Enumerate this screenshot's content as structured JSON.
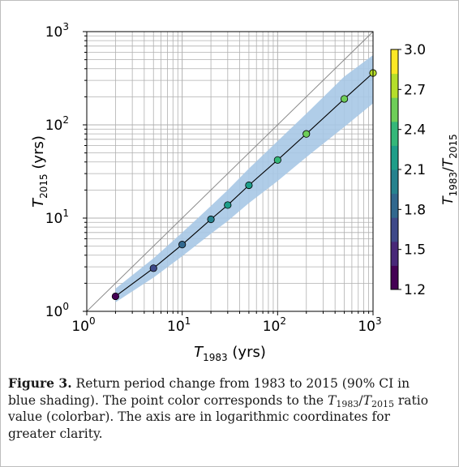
{
  "chart_data": {
    "type": "scatter",
    "x_scale": "log",
    "y_scale": "log",
    "xlim": [
      1,
      1000
    ],
    "ylim": [
      1,
      1000
    ],
    "xlabel": {
      "symbol": "T",
      "sub": "1983",
      "unit": "(yrs)"
    },
    "ylabel": {
      "symbol": "T",
      "sub": "2015",
      "unit": "(yrs)"
    },
    "x_ticks": [
      {
        "value": 1,
        "base": "10",
        "exp": "0"
      },
      {
        "value": 10,
        "base": "10",
        "exp": "1"
      },
      {
        "value": 100,
        "base": "10",
        "exp": "2"
      },
      {
        "value": 1000,
        "base": "10",
        "exp": "3"
      }
    ],
    "y_ticks": [
      {
        "value": 1,
        "base": "10",
        "exp": "0"
      },
      {
        "value": 10,
        "base": "10",
        "exp": "1"
      },
      {
        "value": 100,
        "base": "10",
        "exp": "2"
      },
      {
        "value": 1000,
        "base": "10",
        "exp": "3"
      }
    ],
    "grid": true,
    "reference_line": "y = x",
    "series": [
      {
        "x": [
          2,
          5,
          10,
          20,
          30,
          50,
          100,
          200,
          500,
          1000
        ],
        "y": [
          1.45,
          2.9,
          5.2,
          9.7,
          13.8,
          22.5,
          42,
          80,
          190,
          360
        ],
        "ratio": [
          1.38,
          1.72,
          1.92,
          2.06,
          2.17,
          2.22,
          2.38,
          2.5,
          2.63,
          2.78
        ]
      }
    ],
    "ci_band": {
      "x": [
        2,
        5,
        10,
        20,
        30,
        50,
        100,
        200,
        500,
        1000
      ],
      "lower": [
        1.25,
        2.3,
        3.9,
        6.8,
        9.3,
        14.5,
        25,
        45,
        95,
        170
      ],
      "upper": [
        1.75,
        3.7,
        7.0,
        13.5,
        20,
        34,
        67,
        132,
        330,
        560
      ],
      "color": "#a7c8e6"
    },
    "colorbar": {
      "min": 1.2,
      "max": 3.0,
      "ticks": [
        "1.2",
        "1.5",
        "1.8",
        "2.1",
        "2.4",
        "2.7",
        "3.0"
      ],
      "colors": [
        "#440154",
        "#482878",
        "#3e4989",
        "#31688e",
        "#26828e",
        "#1f9e89",
        "#35b779",
        "#6ece58",
        "#b5de2b",
        "#fde725"
      ],
      "label": {
        "num_symbol": "T",
        "num_sub": "1983",
        "den_symbol": "T",
        "den_sub": "2015"
      }
    }
  },
  "caption": {
    "label": "Figure 3.",
    "text_1": " Return period change from 1983 to 2015 (90% CI in blue shading). The point color corresponds to the ",
    "ratio_num_symbol": "T",
    "ratio_num_sub": "1983",
    "ratio_slash": "/",
    "ratio_den_symbol": "T",
    "ratio_den_sub": "2015",
    "text_2": " ratio value (colorbar). The axis are in logarithmic coordinates for greater clarity."
  }
}
